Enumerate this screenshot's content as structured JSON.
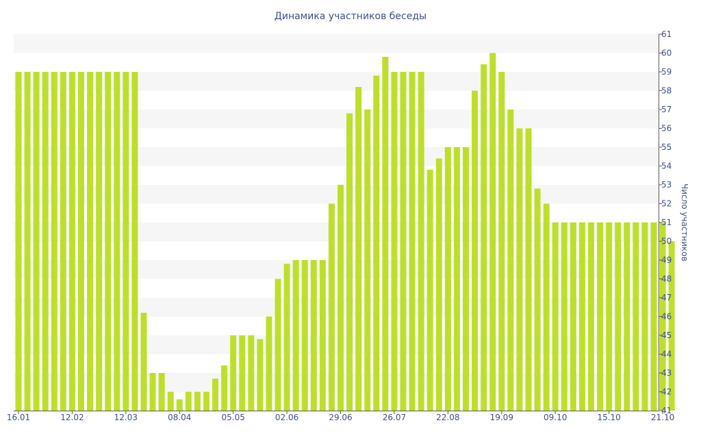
{
  "chart_data": {
    "type": "bar",
    "title": "Динамика участников беседы",
    "xlabel": "",
    "ylabel": "Число участников",
    "ylim": [
      41,
      61
    ],
    "yticks": [
      41,
      42,
      43,
      44,
      45,
      46,
      47,
      48,
      49,
      50,
      51,
      52,
      53,
      54,
      55,
      56,
      57,
      58,
      59,
      60,
      61
    ],
    "x_tick_labels": [
      {
        "index": 0,
        "label": "16.01"
      },
      {
        "index": 6,
        "label": "12.02"
      },
      {
        "index": 12,
        "label": "12.03"
      },
      {
        "index": 18,
        "label": "08.04"
      },
      {
        "index": 24,
        "label": "05.05"
      },
      {
        "index": 30,
        "label": "02.06"
      },
      {
        "index": 36,
        "label": "29.06"
      },
      {
        "index": 42,
        "label": "26.07"
      },
      {
        "index": 48,
        "label": "22.08"
      },
      {
        "index": 54,
        "label": "19.09"
      },
      {
        "index": 60,
        "label": "09.10"
      },
      {
        "index": 66,
        "label": "15.10"
      },
      {
        "index": 72,
        "label": "21.10"
      }
    ],
    "values": [
      59,
      59,
      59,
      59,
      59,
      59,
      59,
      59,
      59,
      59,
      59,
      59,
      59,
      59,
      46.2,
      43,
      43,
      42,
      41.6,
      42,
      42,
      42,
      42.7,
      43.4,
      45,
      45,
      45,
      44.8,
      46,
      48,
      48.8,
      49,
      49,
      49,
      49,
      52,
      53,
      56.8,
      58.2,
      57,
      58.8,
      59.8,
      59,
      59,
      59,
      59,
      53.8,
      54.4,
      55,
      55,
      55,
      58,
      59.4,
      60,
      59,
      57,
      56,
      56,
      52.8,
      52,
      51,
      51,
      51,
      51,
      51,
      51,
      51,
      51,
      51,
      51,
      51,
      51,
      51,
      50
    ],
    "grid": "alternating horizontal bands",
    "bar_color": "#bddf2b",
    "text_color": "#3c4f8f",
    "band_color": "#f6f6f6",
    "y_axis_position": "right"
  }
}
